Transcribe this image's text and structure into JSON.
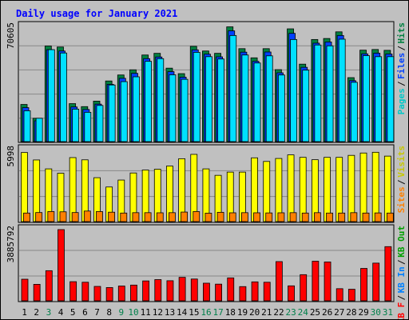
{
  "title": "Daily usage for January 2021",
  "colors": {
    "background": "#c0c0c0",
    "panel": "#c0c0c0",
    "hits": "#008040",
    "files": "#0040ff",
    "pages": "#00e0ff",
    "visits": "#ffff00",
    "sites": "#ff8000",
    "kbin": "#0080ff",
    "kbout": "#00a000",
    "kbf": "#ff0000",
    "title": "#0000ff",
    "weekday": "#000000",
    "weekend": "#00804b"
  },
  "legend": {
    "top": [
      {
        "text": "Hits",
        "color": "#008040"
      },
      {
        "text": "Files",
        "color": "#0040ff"
      },
      {
        "text": "Pages",
        "color": "#00c8c8"
      }
    ],
    "middle": [
      {
        "text": "Visits",
        "color": "#c8c800"
      },
      {
        "text": "Sites",
        "color": "#ff8000"
      }
    ],
    "bottom": [
      {
        "text": "KB Out",
        "color": "#00a000"
      },
      {
        "text": "KB In",
        "color": "#0080ff"
      },
      {
        "text": "KB F",
        "color": "#ff0000"
      }
    ]
  },
  "chart_data": {
    "type": "bar",
    "title": "Daily usage for January 2021",
    "categories": [
      "1",
      "2",
      "3",
      "4",
      "5",
      "6",
      "7",
      "8",
      "9",
      "10",
      "11",
      "12",
      "13",
      "14",
      "15",
      "16",
      "17",
      "18",
      "19",
      "20",
      "21",
      "22",
      "23",
      "24",
      "25",
      "26",
      "27",
      "28",
      "29",
      "30",
      "31"
    ],
    "weekend_days": [
      3,
      9,
      10,
      16,
      17,
      23,
      24,
      30,
      31
    ],
    "panels": [
      {
        "name": "usage",
        "ymax_label": "70605",
        "ymax": 70605,
        "series": [
          {
            "name": "Hits",
            "values": [
              22300,
              14000,
              57400,
              56800,
              22800,
              21000,
              24300,
              36400,
              40000,
              43100,
              52000,
              53000,
              44100,
              40800,
              57200,
              54400,
              53000,
              68900,
              55800,
              50300,
              55800,
              43200,
              67700,
              46500,
              61300,
              61900,
              65900,
              38400,
              54900,
              55300,
              54800
            ]
          },
          {
            "name": "Files",
            "values": [
              20400,
              12500,
              55200,
              54400,
              20800,
              19300,
              22500,
              34400,
              38000,
              41000,
              49800,
              50800,
              42000,
              38700,
              55100,
              52500,
              50900,
              66500,
              53700,
              48200,
              53800,
              41300,
              65000,
              44600,
              59100,
              59800,
              63700,
              36600,
              52700,
              53100,
              52600
            ]
          },
          {
            "name": "Pages",
            "values": [
              18500,
              14000,
              55200,
              53200,
              19500,
              17600,
              21700,
              34000,
              36000,
              38900,
              48200,
              49800,
              40100,
              37400,
              53600,
              51000,
              49600,
              63700,
              52000,
              47200,
              51500,
              40000,
              61300,
              42900,
              58000,
              57500,
              61500,
              35600,
              51600,
              51000,
              51000
            ]
          }
        ]
      },
      {
        "name": "visits",
        "ymax_label": "5998",
        "ymax": 5998,
        "series": [
          {
            "name": "Visits",
            "values": [
              5570,
              4970,
              4250,
              3900,
              5160,
              4980,
              3540,
              2790,
              3350,
              3920,
              4160,
              4220,
              4480,
              5070,
              5420,
              4250,
              3730,
              3990,
              3990,
              5140,
              4850,
              5090,
              5380,
              5180,
              4990,
              5180,
              5180,
              5340,
              5530,
              5590,
              5280
            ]
          },
          {
            "name": "Sites",
            "values": [
              690,
              730,
              810,
              790,
              730,
              850,
              810,
              760,
              690,
              720,
              720,
              710,
              720,
              770,
              810,
              680,
              750,
              710,
              720,
              710,
              700,
              710,
              720,
              690,
              720,
              690,
              690,
              720,
              690,
              700,
              690
            ]
          }
        ]
      },
      {
        "name": "kbytes",
        "ymax_label": "3885792",
        "ymax": 3885792,
        "series": [
          {
            "name": "KB F",
            "values": [
              1140000,
              870000,
              1590000,
              3760000,
              1010000,
              980000,
              760000,
              700000,
              780000,
              830000,
              1050000,
              1120000,
              1060000,
              1240000,
              1150000,
              930000,
              880000,
              1210000,
              750000,
              1000000,
              980000,
              2070000,
              790000,
              1380000,
              2090000,
              2050000,
              640000,
              610000,
              1710000,
              1990000,
              2860000
            ]
          }
        ]
      }
    ]
  }
}
